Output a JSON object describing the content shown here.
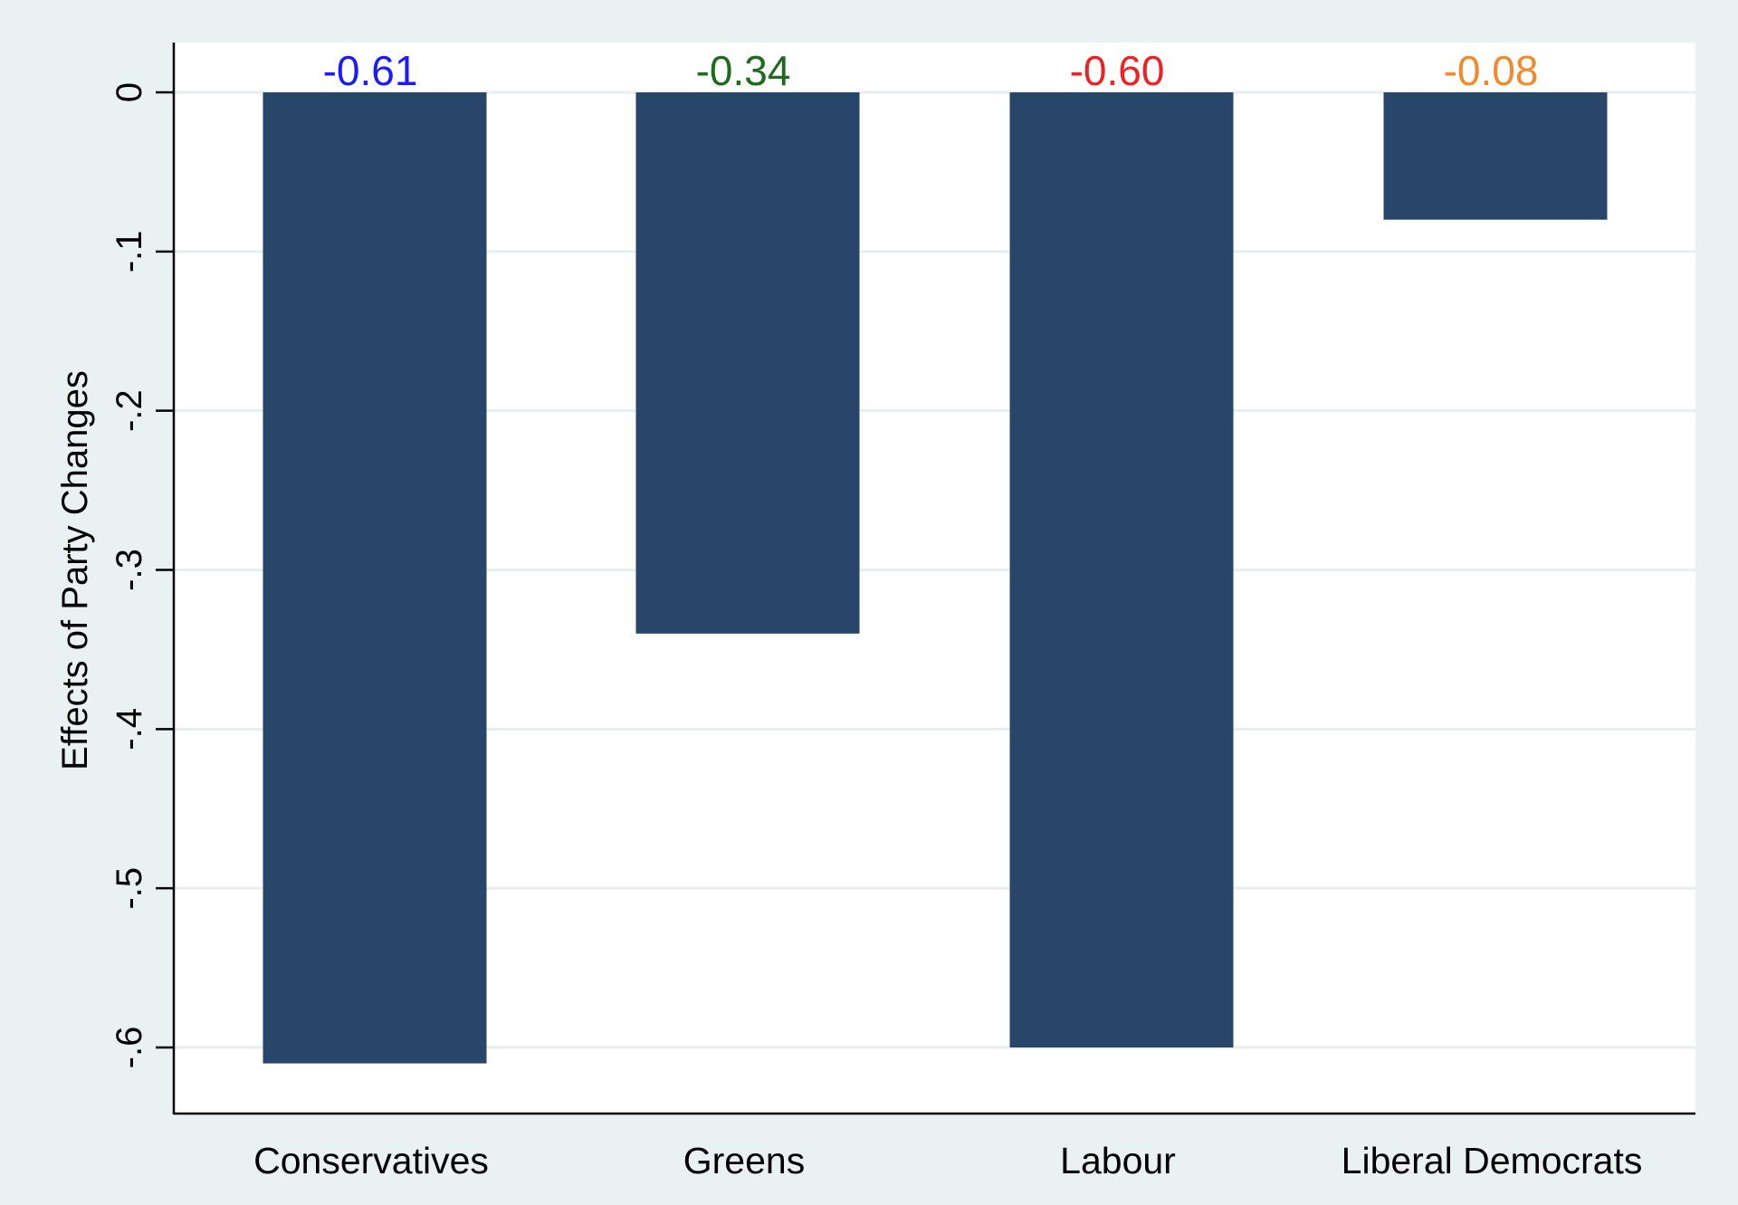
{
  "chart_data": {
    "type": "bar",
    "categories": [
      "Conservatives",
      "Greens",
      "Labour",
      "Liberal Democrats"
    ],
    "values": [
      -0.61,
      -0.34,
      -0.6,
      -0.08
    ],
    "data_labels": [
      "-0.61",
      "-0.34",
      "-0.60",
      "-0.08"
    ],
    "data_label_colors": [
      "#1a1aff",
      "#1e6b1e",
      "#ee2222",
      "#f08a2a"
    ],
    "bar_color": "#27466a",
    "title": "",
    "xlabel": "",
    "ylabel": "Effects of Party Changes",
    "ylim": [
      -0.65,
      0.027
    ],
    "yticks": [
      0,
      -0.1,
      -0.2,
      -0.3,
      -0.4,
      -0.5,
      -0.6
    ],
    "ytick_labels": [
      "0",
      "-.1",
      "-.2",
      "-.3",
      "-.4",
      "-.5",
      "-.6"
    ],
    "grid": true,
    "background_color": "#eaf1f3",
    "plot_background_color": "#ffffff"
  }
}
